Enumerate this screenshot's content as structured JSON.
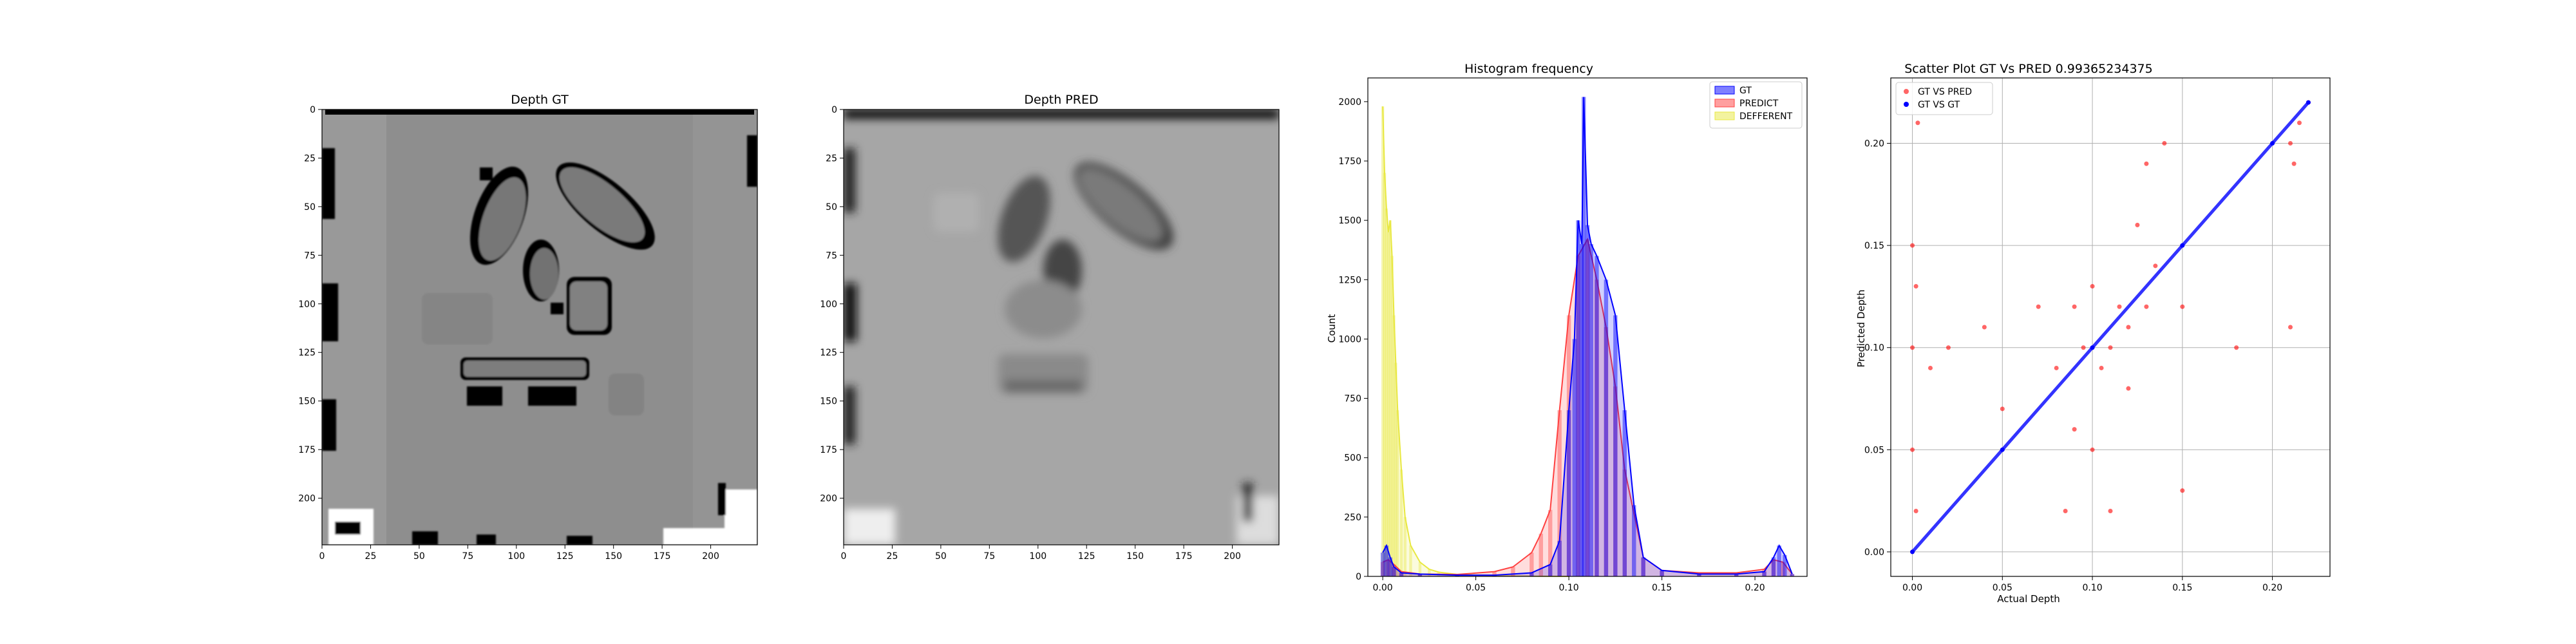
{
  "chart_data": [
    {
      "type": "heatmap",
      "title": "Depth GT",
      "xticks": [
        "0",
        "25",
        "50",
        "75",
        "100",
        "125",
        "150",
        "175",
        "200"
      ],
      "yticks": [
        "0",
        "25",
        "50",
        "75",
        "100",
        "125",
        "150",
        "175",
        "200"
      ],
      "xlim": [
        0,
        224
      ],
      "ylim": [
        224,
        0
      ]
    },
    {
      "type": "heatmap",
      "title": "Depth PRED",
      "xticks": [
        "0",
        "25",
        "50",
        "75",
        "100",
        "125",
        "150",
        "175",
        "200"
      ],
      "yticks": [
        "0",
        "25",
        "50",
        "75",
        "100",
        "125",
        "150",
        "175",
        "200"
      ],
      "xlim": [
        0,
        224
      ],
      "ylim": [
        224,
        0
      ]
    },
    {
      "type": "bar",
      "title": "Histogram frequency",
      "xlabel": "",
      "ylabel": "Count",
      "xlim": [
        -0.008,
        0.228
      ],
      "ylim": [
        0,
        2100
      ],
      "xticks": [
        "0.00",
        "0.05",
        "0.10",
        "0.15",
        "0.20"
      ],
      "yticks": [
        "0",
        "250",
        "500",
        "750",
        "1000",
        "1250",
        "1500",
        "1750",
        "2000"
      ],
      "legend_position": "top-right",
      "series": [
        {
          "name": "GT",
          "color": "#0000ff",
          "x": [
            0.0,
            0.002,
            0.004,
            0.006,
            0.01,
            0.02,
            0.04,
            0.06,
            0.08,
            0.09,
            0.095,
            0.1,
            0.103,
            0.105,
            0.107,
            0.108,
            0.11,
            0.112,
            0.115,
            0.12,
            0.125,
            0.13,
            0.135,
            0.14,
            0.15,
            0.17,
            0.19,
            0.205,
            0.21,
            0.213,
            0.216,
            0.22
          ],
          "values": [
            100,
            130,
            80,
            40,
            15,
            10,
            5,
            5,
            15,
            50,
            150,
            700,
            1000,
            1500,
            1400,
            2020,
            1480,
            1400,
            1350,
            1250,
            1100,
            700,
            300,
            80,
            25,
            10,
            10,
            20,
            80,
            130,
            90,
            10
          ]
        },
        {
          "name": "PREDICT",
          "color": "#ff4040",
          "x": [
            0.0,
            0.003,
            0.006,
            0.01,
            0.02,
            0.04,
            0.06,
            0.07,
            0.08,
            0.085,
            0.09,
            0.095,
            0.1,
            0.105,
            0.11,
            0.115,
            0.12,
            0.125,
            0.13,
            0.14,
            0.15,
            0.17,
            0.19,
            0.205,
            0.21,
            0.215,
            0.22
          ],
          "values": [
            60,
            70,
            50,
            20,
            10,
            8,
            20,
            40,
            100,
            180,
            280,
            700,
            1100,
            1350,
            1420,
            1250,
            1050,
            800,
            450,
            80,
            25,
            15,
            15,
            30,
            70,
            60,
            10
          ]
        },
        {
          "name": "DEFFERENT",
          "color": "#e8e840",
          "x": [
            0.0,
            0.001,
            0.002,
            0.003,
            0.004,
            0.005,
            0.006,
            0.007,
            0.008,
            0.01,
            0.012,
            0.015,
            0.02,
            0.025,
            0.03,
            0.04,
            0.06,
            0.08,
            0.1
          ],
          "values": [
            1980,
            1700,
            1550,
            1450,
            1500,
            1350,
            1100,
            900,
            700,
            450,
            250,
            130,
            60,
            30,
            18,
            8,
            3,
            1,
            0
          ]
        }
      ]
    },
    {
      "type": "scatter",
      "title": "Scatter Plot GT Vs PRED 0.99365234375",
      "xlabel": "Actual Depth",
      "ylabel": "Predicted Depth",
      "xlim": [
        -0.012,
        0.232
      ],
      "ylim": [
        -0.012,
        0.232
      ],
      "xticks": [
        "0.00",
        "0.05",
        "0.10",
        "0.15",
        "0.20"
      ],
      "yticks": [
        "0.00",
        "0.05",
        "0.10",
        "0.15",
        "0.20"
      ],
      "grid": true,
      "legend_position": "top-left",
      "series": [
        {
          "name": "GT VS PRED",
          "color": "#ff0000",
          "x": [
            0.0,
            0.0,
            0.0,
            0.0,
            0.002,
            0.002,
            0.003,
            0.01,
            0.02,
            0.04,
            0.05,
            0.07,
            0.08,
            0.085,
            0.09,
            0.09,
            0.095,
            0.1,
            0.1,
            0.105,
            0.11,
            0.11,
            0.115,
            0.12,
            0.12,
            0.125,
            0.13,
            0.13,
            0.135,
            0.14,
            0.15,
            0.15,
            0.18,
            0.21,
            0.21,
            0.212,
            0.215,
            0.22
          ],
          "y": [
            0.0,
            0.05,
            0.1,
            0.15,
            0.02,
            0.13,
            0.21,
            0.09,
            0.1,
            0.11,
            0.07,
            0.12,
            0.09,
            0.02,
            0.06,
            0.12,
            0.1,
            0.05,
            0.13,
            0.09,
            0.1,
            0.02,
            0.12,
            0.11,
            0.08,
            0.16,
            0.19,
            0.12,
            0.14,
            0.2,
            0.03,
            0.12,
            0.1,
            0.11,
            0.2,
            0.19,
            0.21,
            0.22
          ]
        },
        {
          "name": "GT VS GT",
          "color": "#0000ff",
          "x": [
            0.0,
            0.05,
            0.1,
            0.15,
            0.2,
            0.22
          ],
          "y": [
            0.0,
            0.05,
            0.1,
            0.15,
            0.2,
            0.22
          ]
        }
      ]
    }
  ]
}
